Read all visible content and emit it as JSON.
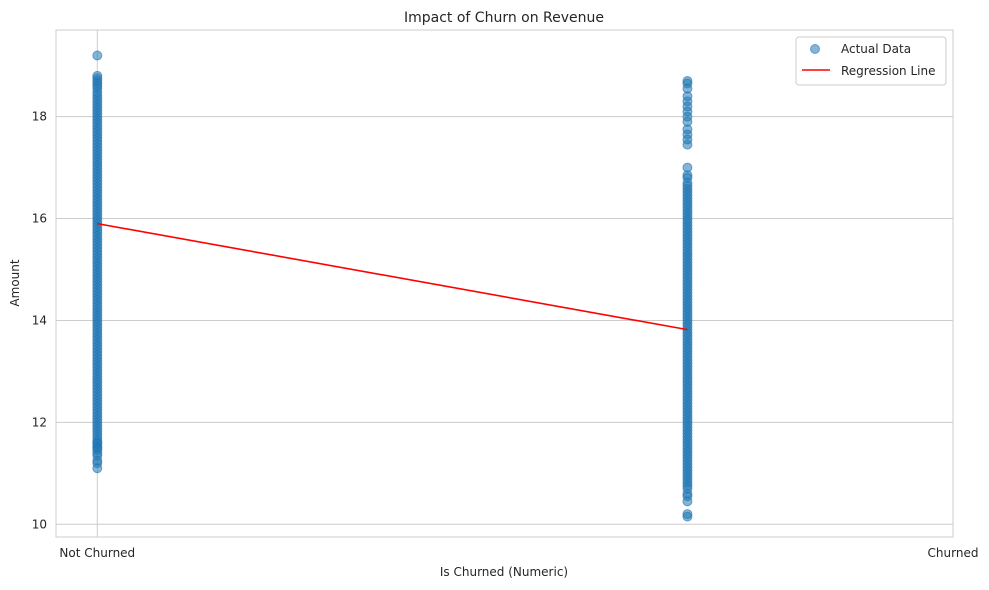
{
  "chart_data": {
    "type": "scatter",
    "title": "Impact of Churn on Revenue",
    "xlabel": "Is Churned (Numeric)",
    "ylabel": "Amount",
    "xlim": [
      -0.07,
      1.45
    ],
    "ylim": [
      9.75,
      19.7
    ],
    "x_ticks": [
      {
        "value": 0,
        "label": "Not Churned"
      },
      {
        "value": 1.45,
        "label": "Churned"
      }
    ],
    "y_ticks": [
      10,
      12,
      14,
      16,
      18
    ],
    "grid": true,
    "legend_position": "top-right",
    "series": [
      {
        "name": "Actual Data",
        "kind": "scatter",
        "color": "#1f77b4",
        "opacity": 0.55,
        "dense_ranges": [
          {
            "x": 0,
            "y_min": 11.4,
            "y_max": 18.5
          },
          {
            "x": 1,
            "y_min": 10.7,
            "y_max": 16.7
          }
        ],
        "points": [
          {
            "x": 0,
            "y": 19.2
          },
          {
            "x": 0,
            "y": 18.8
          },
          {
            "x": 0,
            "y": 18.75
          },
          {
            "x": 0,
            "y": 18.7
          },
          {
            "x": 0,
            "y": 18.65
          },
          {
            "x": 0,
            "y": 18.6
          },
          {
            "x": 0,
            "y": 18.55
          },
          {
            "x": 0,
            "y": 11.6
          },
          {
            "x": 0,
            "y": 11.5
          },
          {
            "x": 0,
            "y": 11.35
          },
          {
            "x": 0,
            "y": 11.25
          },
          {
            "x": 0,
            "y": 11.2
          },
          {
            "x": 0,
            "y": 11.1
          },
          {
            "x": 1,
            "y": 18.7
          },
          {
            "x": 1,
            "y": 18.65
          },
          {
            "x": 1,
            "y": 18.55
          },
          {
            "x": 1,
            "y": 18.4
          },
          {
            "x": 1,
            "y": 18.3
          },
          {
            "x": 1,
            "y": 18.2
          },
          {
            "x": 1,
            "y": 18.1
          },
          {
            "x": 1,
            "y": 18.0
          },
          {
            "x": 1,
            "y": 17.9
          },
          {
            "x": 1,
            "y": 17.75
          },
          {
            "x": 1,
            "y": 17.65
          },
          {
            "x": 1,
            "y": 17.55
          },
          {
            "x": 1,
            "y": 17.45
          },
          {
            "x": 1,
            "y": 17.0
          },
          {
            "x": 1,
            "y": 16.85
          },
          {
            "x": 1,
            "y": 16.8
          },
          {
            "x": 1,
            "y": 10.6
          },
          {
            "x": 1,
            "y": 10.55
          },
          {
            "x": 1,
            "y": 10.45
          },
          {
            "x": 1,
            "y": 10.2
          },
          {
            "x": 1,
            "y": 10.15
          }
        ]
      },
      {
        "name": "Regression Line",
        "kind": "line",
        "color": "#ff0000",
        "x": [
          0,
          1
        ],
        "y": [
          15.9,
          13.82
        ]
      }
    ]
  }
}
